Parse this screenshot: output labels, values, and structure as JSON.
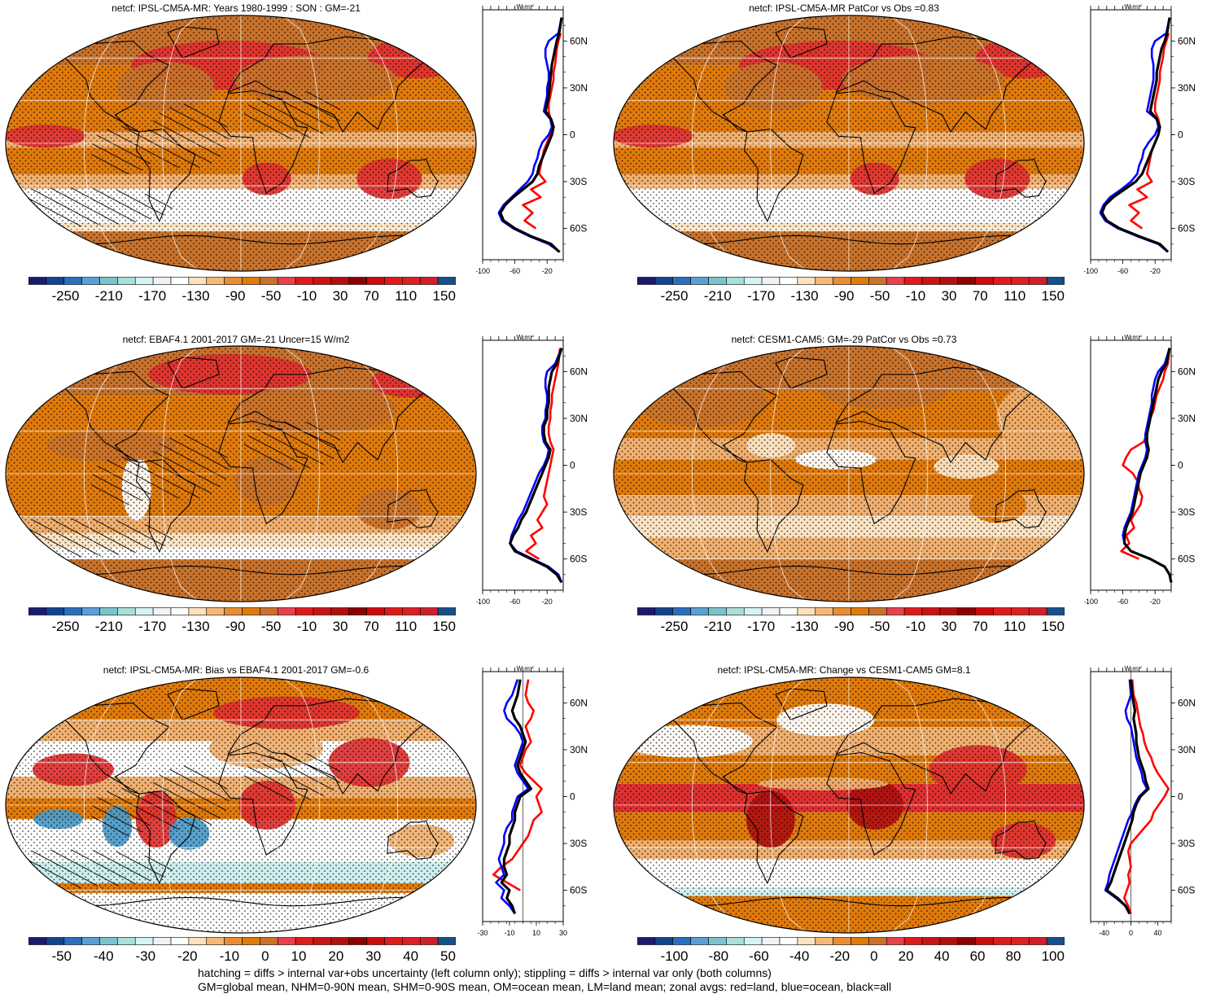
{
  "footer": {
    "line1": "hatching = diffs > internal var+obs uncertainty (left column only); stippling = diffs > internal var only (both columns)",
    "line2": "GM=global mean, NHM=0-90N mean, SHM=0-90S mean, OM=ocean mean, LM=land mean; zonal avgs: red=land, blue=ocean, black=all"
  },
  "colors": {
    "land": "#ff0000",
    "ocean": "#0000ff",
    "all": "#000000",
    "orange": "#e07a0c",
    "dark_orange": "#c8722c",
    "tan": "#f0b070",
    "light": "#fbe3c3",
    "white": "#ffffff",
    "red": "#e03030",
    "dark_red": "#b01010",
    "light_blue": "#cdeeee",
    "steel": "#4a9ac8"
  },
  "colorbars": {
    "main": {
      "colors": [
        "#1a1a6e",
        "#13448c",
        "#2a6fbd",
        "#5aa0d6",
        "#7cc3c9",
        "#a8dfd8",
        "#d6f2f2",
        "#f2f2f2",
        "#ffffff",
        "#fde0bd",
        "#f4b977",
        "#e88d35",
        "#e07a0c",
        "#c8722c",
        "#e8414a",
        "#e01a1a",
        "#c81414",
        "#b40f0f",
        "#8c0000",
        "#cd0a0a",
        "#e01a1a",
        "#dd1f22",
        "#d21e2a",
        "#155089"
      ],
      "labels": [
        "-250",
        "-210",
        "-170",
        "-130",
        "-90",
        "-50",
        "-10",
        "30",
        "70",
        "110",
        "150"
      ]
    },
    "bias": {
      "colors": [
        "#1a1a6e",
        "#13448c",
        "#2a6fbd",
        "#5aa0d6",
        "#7cc3c9",
        "#a8dfd8",
        "#d6f2f2",
        "#f2f2f2",
        "#ffffff",
        "#fde0bd",
        "#f4b977",
        "#e88d35",
        "#e07a0c",
        "#c8722c",
        "#e8414a",
        "#e01a1a",
        "#c81414",
        "#b40f0f",
        "#8c0000",
        "#cd0a0a",
        "#e01a1a",
        "#dd1f22",
        "#d21e2a",
        "#155089"
      ],
      "labels": [
        "-50",
        "-40",
        "-30",
        "-20",
        "-10",
        "0",
        "10",
        "20",
        "30",
        "40",
        "50"
      ]
    },
    "change": {
      "colors": [
        "#1a1a6e",
        "#13448c",
        "#2a6fbd",
        "#5aa0d6",
        "#7cc3c9",
        "#a8dfd8",
        "#d6f2f2",
        "#f2f2f2",
        "#ffffff",
        "#fde0bd",
        "#f4b977",
        "#e88d35",
        "#e07a0c",
        "#c8722c",
        "#e8414a",
        "#e01a1a",
        "#c81414",
        "#b40f0f",
        "#8c0000",
        "#cd0a0a",
        "#e01a1a",
        "#dd1f22",
        "#d21e2a",
        "#155089"
      ],
      "labels": [
        "-100",
        "-80",
        "-60",
        "-40",
        "-20",
        "0",
        "20",
        "40",
        "60",
        "80",
        "100"
      ]
    }
  },
  "chart_data": [
    {
      "type": "heatmap",
      "title": "netcf: IPSL-CM5A-MR: Years 1980-1999 : SON : GM=-21",
      "colorbar": "main",
      "hatched": true,
      "palette": "main",
      "zonal": {
        "unit": "W m-2",
        "xticks": [
          "-100",
          "-60",
          "-20"
        ],
        "xlim": [
          -100,
          0
        ],
        "yticks": [
          "60N",
          "30N",
          "0",
          "30S",
          "60S"
        ],
        "lat": [
          75,
          65,
          60,
          55,
          50,
          45,
          40,
          35,
          30,
          25,
          20,
          15,
          10,
          5,
          0,
          -5,
          -10,
          -15,
          -20,
          -25,
          -30,
          -35,
          -40,
          -45,
          -50,
          -55,
          -60,
          -65,
          -70,
          -75
        ],
        "all": [
          -2,
          -5,
          -8,
          -10,
          -12,
          -14,
          -15,
          -16,
          -17,
          -18,
          -20,
          -22,
          -15,
          -12,
          -14,
          -18,
          -22,
          -26,
          -30,
          -32,
          -38,
          -50,
          -62,
          -72,
          -78,
          -74,
          -60,
          -40,
          -15,
          -5
        ],
        "ocean": [
          -2,
          -6,
          -18,
          -22,
          -22,
          -20,
          -18,
          -18,
          -20,
          -20,
          -22,
          -24,
          -16,
          -14,
          -18,
          -26,
          -30,
          -32,
          -36,
          -38,
          -44,
          -54,
          -64,
          -74,
          -80,
          -76,
          -62,
          -42,
          -18,
          -4
        ],
        "land": [
          null,
          -3,
          -6,
          -8,
          -9,
          -10,
          -12,
          -12,
          -14,
          -16,
          -18,
          -18,
          -16,
          -14,
          -16,
          -20,
          -24,
          -26,
          -28,
          -30,
          -22,
          -40,
          -28,
          -50,
          -38,
          -48,
          -34,
          null,
          null,
          null
        ]
      }
    },
    {
      "type": "heatmap",
      "title": "netcf: IPSL-CM5A-MR PatCor vs Obs =0.83",
      "colorbar": "main",
      "hatched": false,
      "palette": "main",
      "zonal": {
        "unit": "W m-2",
        "xticks": [
          "-100",
          "-60",
          "-20"
        ],
        "xlim": [
          -100,
          0
        ],
        "yticks": [
          "60N",
          "30N",
          "0",
          "30S",
          "60S"
        ],
        "lat": [
          75,
          65,
          60,
          55,
          50,
          45,
          40,
          35,
          30,
          25,
          20,
          15,
          10,
          5,
          0,
          -5,
          -10,
          -15,
          -20,
          -25,
          -30,
          -35,
          -40,
          -45,
          -50,
          -55,
          -60,
          -65,
          -70,
          -75
        ],
        "all": [
          -2,
          -5,
          -8,
          -12,
          -14,
          -16,
          -18,
          -18,
          -20,
          -22,
          -24,
          -26,
          -18,
          -14,
          -16,
          -20,
          -24,
          -28,
          -32,
          -36,
          -44,
          -58,
          -72,
          -82,
          -86,
          -80,
          -64,
          -40,
          -14,
          -4
        ],
        "ocean": [
          -2,
          -6,
          -20,
          -24,
          -24,
          -22,
          -22,
          -22,
          -24,
          -26,
          -28,
          -30,
          -18,
          -16,
          -20,
          -28,
          -34,
          -36,
          -40,
          -42,
          -50,
          -62,
          -76,
          -84,
          -88,
          -82,
          -66,
          -42,
          -16,
          -4
        ],
        "land": [
          null,
          -3,
          -6,
          -9,
          -10,
          -12,
          -14,
          -14,
          -16,
          -18,
          -20,
          -20,
          -16,
          -14,
          -16,
          -20,
          -24,
          -26,
          -28,
          -30,
          -24,
          -42,
          -30,
          -52,
          -40,
          -50,
          -36,
          null,
          null,
          null
        ]
      }
    },
    {
      "type": "heatmap",
      "title": "netcf: EBAF4.1 2001-2017 GM=-21 Uncer=15 W/m2",
      "colorbar": "main",
      "hatched": true,
      "palette": "obs",
      "zonal": {
        "unit": "W m-2",
        "xticks": [
          "-100",
          "-60",
          "-20"
        ],
        "xlim": [
          -100,
          0
        ],
        "yticks": [
          "60N",
          "30N",
          "0",
          "30S",
          "60S"
        ],
        "lat": [
          75,
          65,
          60,
          55,
          50,
          45,
          40,
          35,
          30,
          25,
          20,
          15,
          10,
          5,
          0,
          -5,
          -10,
          -15,
          -20,
          -25,
          -30,
          -35,
          -40,
          -45,
          -50,
          -55,
          -60,
          -65,
          -70,
          -75
        ],
        "all": [
          -2,
          -8,
          -14,
          -16,
          -18,
          -18,
          -18,
          -20,
          -20,
          -24,
          -24,
          -22,
          -16,
          -18,
          -22,
          -26,
          -30,
          -34,
          -38,
          -42,
          -46,
          -52,
          -56,
          -62,
          -66,
          -60,
          -40,
          -20,
          -8,
          -2
        ],
        "ocean": [
          -2,
          -10,
          -20,
          -22,
          -22,
          -20,
          -20,
          -22,
          -22,
          -26,
          -26,
          -24,
          -18,
          -20,
          -24,
          -30,
          -34,
          -38,
          -42,
          -46,
          -50,
          -56,
          -60,
          -64,
          -66,
          -58,
          -38,
          -18,
          -6,
          -2
        ],
        "land": [
          -4,
          -6,
          -8,
          -10,
          -12,
          -14,
          -14,
          -16,
          -16,
          -18,
          -18,
          -16,
          -12,
          -14,
          -16,
          -18,
          -20,
          -22,
          -24,
          -20,
          -26,
          -32,
          -26,
          -40,
          -34,
          -46,
          -30,
          null,
          null,
          null
        ]
      }
    },
    {
      "type": "heatmap",
      "title": "netcf: CESM1-CAM5: GM=-29 PatCor vs Obs =0.73",
      "colorbar": "main",
      "hatched": false,
      "palette": "cesm",
      "zonal": {
        "unit": "W m-2",
        "xticks": [
          "-100",
          "-60",
          "-20"
        ],
        "xlim": [
          -100,
          0
        ],
        "yticks": [
          "60N",
          "30N",
          "0",
          "30S",
          "60S"
        ],
        "lat": [
          75,
          65,
          60,
          55,
          50,
          45,
          40,
          35,
          30,
          25,
          20,
          15,
          10,
          5,
          0,
          -5,
          -10,
          -15,
          -20,
          -25,
          -30,
          -35,
          -40,
          -45,
          -50,
          -55,
          -60,
          -65,
          -70,
          -75
        ],
        "all": [
          -2,
          -6,
          -12,
          -16,
          -18,
          -20,
          -22,
          -24,
          -26,
          -28,
          -30,
          -30,
          -28,
          -30,
          -34,
          -38,
          -40,
          -42,
          -44,
          -46,
          -48,
          -52,
          -56,
          -58,
          -58,
          -50,
          -26,
          -8,
          -2,
          0
        ],
        "ocean": [
          -2,
          -8,
          -16,
          -20,
          -22,
          -24,
          -24,
          -26,
          -28,
          -30,
          -32,
          -32,
          -30,
          -32,
          -36,
          -40,
          -42,
          -44,
          -46,
          -48,
          -50,
          -54,
          -58,
          -60,
          -58,
          -50,
          -26,
          -8,
          -2,
          0
        ],
        "land": [
          -2,
          -4,
          -8,
          -10,
          -14,
          -18,
          -20,
          -22,
          -26,
          -30,
          -30,
          -34,
          -50,
          -56,
          -60,
          -48,
          -42,
          -40,
          -36,
          -38,
          -44,
          -50,
          -46,
          -56,
          -52,
          -62,
          -40,
          null,
          null,
          null
        ]
      }
    },
    {
      "type": "heatmap",
      "title": "netcf: IPSL-CM5A-MR: Bias vs EBAF4.1 2001-2017  GM=-0.6",
      "colorbar": "bias",
      "hatched": true,
      "palette": "bias",
      "zonal": {
        "unit": "W m-2",
        "xticks": [
          "-30",
          "-10",
          "10",
          "30"
        ],
        "xlim": [
          -30,
          30
        ],
        "yticks": [
          "60N",
          "30N",
          "0",
          "30S",
          "60S"
        ],
        "lat": [
          75,
          65,
          60,
          55,
          50,
          45,
          40,
          35,
          30,
          25,
          20,
          15,
          10,
          5,
          0,
          -5,
          -10,
          -15,
          -20,
          -25,
          -30,
          -35,
          -40,
          -45,
          -50,
          -55,
          -60,
          -65,
          -70,
          -75
        ],
        "all": [
          -2,
          -4,
          -6,
          -8,
          -6,
          -2,
          0,
          2,
          0,
          -2,
          -4,
          -2,
          2,
          6,
          -2,
          -4,
          -6,
          -6,
          -8,
          -10,
          -10,
          -12,
          -14,
          -14,
          -12,
          -16,
          -10,
          -12,
          -8,
          -6
        ],
        "ocean": [
          -4,
          -8,
          -12,
          -14,
          -12,
          -6,
          -2,
          0,
          -2,
          -4,
          -6,
          -4,
          0,
          4,
          -4,
          -6,
          -8,
          -8,
          -12,
          -14,
          -14,
          -16,
          -18,
          -16,
          -14,
          -20,
          -14,
          -16,
          -10,
          -6
        ],
        "land": [
          4,
          2,
          4,
          8,
          6,
          2,
          4,
          6,
          2,
          0,
          -2,
          2,
          8,
          14,
          10,
          12,
          14,
          8,
          6,
          4,
          0,
          -4,
          -8,
          -16,
          -22,
          -12,
          -2,
          null,
          22,
          null
        ]
      }
    },
    {
      "type": "heatmap",
      "title": "netcf: IPSL-CM5A-MR: Change vs CESM1-CAM5 GM=8.1",
      "colorbar": "change",
      "hatched": false,
      "palette": "change",
      "zonal": {
        "unit": "W m-2",
        "xticks": [
          "-40",
          "0",
          "40"
        ],
        "xlim": [
          -60,
          60
        ],
        "yticks": [
          "60N",
          "30N",
          "0",
          "30S",
          "60S"
        ],
        "lat": [
          75,
          65,
          60,
          55,
          50,
          45,
          40,
          35,
          30,
          25,
          20,
          15,
          10,
          5,
          0,
          -5,
          -10,
          -15,
          -20,
          -25,
          -30,
          -35,
          -40,
          -45,
          -50,
          -55,
          -60,
          -65,
          -70,
          -75
        ],
        "all": [
          0,
          2,
          4,
          6,
          4,
          6,
          8,
          8,
          10,
          12,
          16,
          20,
          22,
          26,
          14,
          8,
          4,
          2,
          -2,
          -6,
          -10,
          -14,
          -18,
          -22,
          -26,
          -30,
          -36,
          -20,
          -8,
          -2
        ],
        "ocean": [
          -2,
          0,
          -4,
          -8,
          -6,
          0,
          2,
          4,
          6,
          8,
          12,
          16,
          18,
          24,
          12,
          6,
          2,
          -4,
          -8,
          -12,
          -16,
          -20,
          -24,
          -28,
          -32,
          -34,
          -38,
          -22,
          -8,
          -2
        ],
        "land": [
          2,
          4,
          8,
          10,
          12,
          14,
          18,
          20,
          24,
          30,
          34,
          40,
          48,
          56,
          50,
          42,
          34,
          30,
          20,
          10,
          0,
          -4,
          -2,
          0,
          -4,
          -2,
          -6,
          -10,
          -4,
          0
        ]
      }
    }
  ]
}
